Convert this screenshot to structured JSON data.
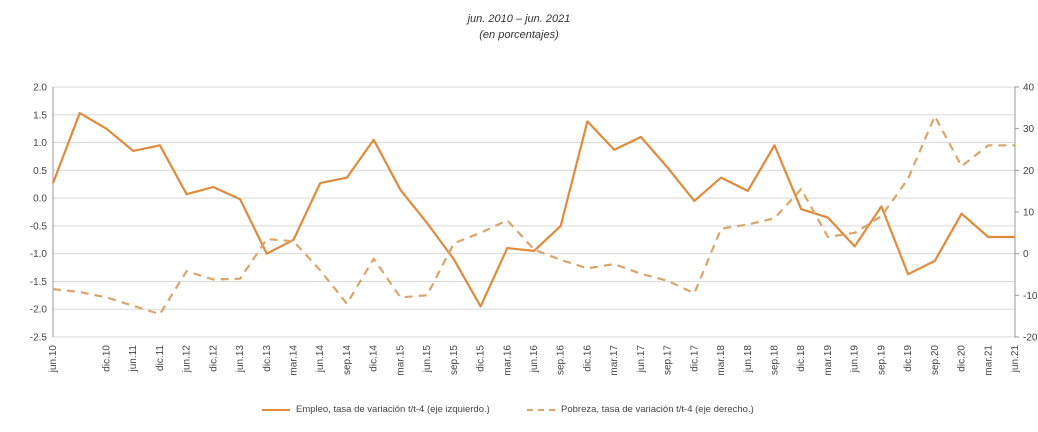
{
  "chart_data": {
    "type": "line",
    "title": "jun. 2010 – jun. 2021",
    "subtitle": "(en porcentajes)",
    "categories": [
      "jun.10",
      "dic.10",
      "jun.11",
      "dic.11",
      "jun.12",
      "dic.12",
      "jun.13",
      "dic.13",
      "mar.14",
      "jun.14",
      "sep.14",
      "dic.14",
      "mar.15",
      "jun.15",
      "sep.15",
      "dic.15",
      "mar.16",
      "jun.16",
      "sep.16",
      "dic.16",
      "mar.17",
      "jun.17",
      "sep.17",
      "dic.17",
      "mar.18",
      "jun.18",
      "sep.18",
      "dic.18",
      "mar.19",
      "jun.19",
      "sep.19",
      "dic.19",
      "sep.20",
      "dic.20",
      "mar.21",
      "jun.21"
    ],
    "x_positions": [
      0,
      2,
      3,
      4,
      5,
      6,
      7,
      8,
      9,
      10,
      11,
      12,
      13,
      14,
      15,
      16,
      17,
      18,
      19,
      20,
      21,
      22,
      23,
      24,
      25,
      26,
      27,
      28,
      29,
      30,
      31,
      32,
      33,
      34,
      35,
      36
    ],
    "series": [
      {
        "name": "Empleo, tasa de variación t/t-4 (eje izquierdo.)",
        "axis": "left",
        "style": "solid",
        "color": "#e08a3c",
        "x": [
          0,
          1,
          2,
          3,
          4,
          5,
          6,
          7,
          8,
          9,
          10,
          11,
          12,
          13,
          14,
          15,
          16,
          17,
          18,
          19,
          20,
          21,
          22,
          23,
          24,
          25,
          26,
          27,
          28,
          29,
          30,
          31,
          32,
          33,
          34,
          35,
          36
        ],
        "values": [
          0.27,
          1.53,
          1.25,
          0.85,
          0.95,
          0.07,
          0.2,
          -0.02,
          -1.0,
          -0.75,
          0.27,
          0.37,
          1.05,
          0.15,
          -0.45,
          -1.1,
          -1.95,
          -0.9,
          -0.95,
          -0.5,
          1.38,
          0.87,
          1.1,
          0.55,
          -0.05,
          0.37,
          0.13,
          0.95,
          -0.2,
          -0.35,
          -0.87,
          -0.15,
          -1.37,
          -1.13,
          -0.28,
          -0.7,
          -0.7
        ]
      },
      {
        "name": "Pobreza, tasa de variación t/t-4 (eje derecho.)",
        "axis": "right",
        "style": "dashed",
        "color": "#d9a56a",
        "x": [
          0,
          1,
          2,
          3,
          4,
          5,
          6,
          7,
          8,
          9,
          10,
          11,
          12,
          13,
          14,
          15,
          16,
          17,
          18,
          19,
          20,
          21,
          22,
          23,
          24,
          25,
          26,
          27,
          28,
          29,
          30,
          31,
          32,
          33,
          34,
          35,
          36
        ],
        "values": [
          -8.5,
          -9.2,
          -10.5,
          -12.5,
          -14.5,
          -4.2,
          -6.2,
          -6.0,
          3.5,
          3.0,
          -4.0,
          -12.0,
          -1.2,
          -10.5,
          -10.0,
          2.5,
          5.0,
          8.0,
          1.0,
          -1.5,
          -3.5,
          -2.5,
          -4.8,
          -6.5,
          -9.5,
          6.0,
          7.0,
          8.5,
          15.5,
          4.0,
          5.0,
          9.0,
          18.0,
          33.0,
          21.0,
          26.0,
          26.0
        ]
      }
    ],
    "y_left": {
      "ylim": [
        -2.5,
        2.0
      ],
      "ticks": [
        "2.0",
        "1.5",
        "1.0",
        "0.5",
        "0.0",
        "-0.5",
        "-1.0",
        "-1.5",
        "-2.0",
        "-2.5"
      ]
    },
    "y_right": {
      "ylim": [
        -20,
        40
      ],
      "ticks": [
        "40",
        "30",
        "20",
        "10",
        "0",
        "-10",
        "-20"
      ]
    },
    "grid": true,
    "legend": "bottom"
  }
}
